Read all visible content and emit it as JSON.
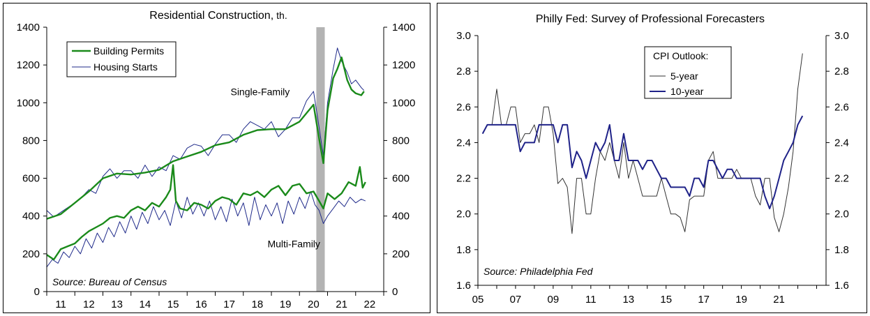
{
  "chart_data": [
    {
      "type": "line",
      "title": "Residential Construction,",
      "title_unit": "th.",
      "source": "Source: Bureau of Census",
      "ylim": [
        0,
        1400
      ],
      "yticks": [
        0,
        200,
        400,
        600,
        800,
        1000,
        1200,
        1400
      ],
      "xlim": [
        2010.5,
        2022.5
      ],
      "xtick_labels": [
        "11",
        "12",
        "13",
        "14",
        "15",
        "16",
        "17",
        "18",
        "19",
        "20",
        "21",
        "22"
      ],
      "shaded_period": [
        2020.1,
        2020.4
      ],
      "shade_color": "#b3b3b3",
      "grid": false,
      "legend_position": "top-left",
      "annotations": [
        {
          "text": "Single-Family",
          "x": 2018.1,
          "y": 1040
        },
        {
          "text": "Multi-Family",
          "x": 2019.3,
          "y": 235
        }
      ],
      "series": [
        {
          "name": "Building Permits",
          "group": "single-family",
          "color": "#1a8a1a",
          "width": 2.4,
          "x": [
            2010.5,
            2011.0,
            2011.5,
            2012.0,
            2012.5,
            2013.0,
            2013.5,
            2014.0,
            2014.5,
            2015.0,
            2015.5,
            2016.0,
            2016.5,
            2017.0,
            2017.5,
            2018.0,
            2018.5,
            2019.0,
            2019.5,
            2020.0,
            2020.2,
            2020.35,
            2020.5,
            2020.7,
            2020.85,
            2021.0,
            2021.2,
            2021.35,
            2021.5,
            2021.7,
            2021.8
          ],
          "y": [
            385,
            410,
            470,
            530,
            600,
            625,
            620,
            630,
            645,
            690,
            715,
            740,
            775,
            790,
            830,
            855,
            860,
            860,
            900,
            990,
            810,
            680,
            960,
            1130,
            1180,
            1240,
            1120,
            1070,
            1050,
            1040,
            1060
          ]
        },
        {
          "name": "Housing Starts",
          "group": "single-family",
          "color": "#1f2a8a",
          "width": 1,
          "x": [
            2010.5,
            2010.75,
            2011.0,
            2011.25,
            2011.5,
            2011.75,
            2012.0,
            2012.25,
            2012.5,
            2012.75,
            2013.0,
            2013.25,
            2013.5,
            2013.75,
            2014.0,
            2014.25,
            2014.5,
            2014.75,
            2015.0,
            2015.25,
            2015.5,
            2015.75,
            2016.0,
            2016.25,
            2016.5,
            2016.75,
            2017.0,
            2017.25,
            2017.5,
            2017.75,
            2018.0,
            2018.25,
            2018.5,
            2018.75,
            2019.0,
            2019.25,
            2019.5,
            2019.75,
            2020.0,
            2020.2,
            2020.35,
            2020.5,
            2020.7,
            2020.85,
            2021.0,
            2021.2,
            2021.35,
            2021.5,
            2021.7,
            2021.8
          ],
          "y": [
            430,
            395,
            420,
            445,
            470,
            500,
            540,
            520,
            610,
            650,
            600,
            640,
            640,
            600,
            670,
            610,
            660,
            640,
            720,
            700,
            760,
            780,
            770,
            720,
            780,
            830,
            830,
            790,
            860,
            900,
            880,
            860,
            900,
            820,
            860,
            920,
            920,
            1010,
            1060,
            870,
            720,
            1000,
            1180,
            1290,
            1220,
            1160,
            1100,
            1120,
            1080,
            1065
          ]
        },
        {
          "name": "Building Permits",
          "group": "multi-family",
          "color": "#1a8a1a",
          "width": 2.4,
          "x": [
            2010.5,
            2010.75,
            2011.0,
            2011.25,
            2011.5,
            2011.75,
            2012.0,
            2012.25,
            2012.5,
            2012.75,
            2013.0,
            2013.25,
            2013.5,
            2013.75,
            2014.0,
            2014.25,
            2014.5,
            2014.75,
            2014.9,
            2015.0,
            2015.1,
            2015.25,
            2015.5,
            2015.75,
            2016.0,
            2016.25,
            2016.5,
            2016.75,
            2017.0,
            2017.25,
            2017.5,
            2017.75,
            2018.0,
            2018.25,
            2018.5,
            2018.75,
            2019.0,
            2019.25,
            2019.5,
            2019.75,
            2020.0,
            2020.2,
            2020.35,
            2020.5,
            2020.75,
            2021.0,
            2021.25,
            2021.5,
            2021.65,
            2021.75,
            2021.85
          ],
          "y": [
            195,
            170,
            225,
            240,
            255,
            290,
            320,
            340,
            360,
            390,
            400,
            390,
            430,
            450,
            430,
            470,
            450,
            500,
            540,
            670,
            480,
            440,
            430,
            470,
            460,
            440,
            480,
            500,
            490,
            460,
            520,
            510,
            530,
            500,
            540,
            560,
            510,
            560,
            570,
            520,
            530,
            480,
            440,
            520,
            490,
            520,
            580,
            560,
            660,
            550,
            580
          ]
        },
        {
          "name": "Housing Starts",
          "group": "multi-family",
          "color": "#1f2a8a",
          "width": 1,
          "x": [
            2010.5,
            2010.7,
            2010.9,
            2011.1,
            2011.3,
            2011.5,
            2011.7,
            2011.9,
            2012.1,
            2012.3,
            2012.5,
            2012.7,
            2012.9,
            2013.1,
            2013.3,
            2013.5,
            2013.7,
            2013.9,
            2014.1,
            2014.3,
            2014.5,
            2014.7,
            2014.9,
            2015.1,
            2015.3,
            2015.5,
            2015.7,
            2015.9,
            2016.1,
            2016.3,
            2016.5,
            2016.7,
            2016.9,
            2017.1,
            2017.3,
            2017.5,
            2017.7,
            2017.9,
            2018.1,
            2018.3,
            2018.5,
            2018.7,
            2018.9,
            2019.1,
            2019.3,
            2019.5,
            2019.7,
            2019.9,
            2020.05,
            2020.2,
            2020.35,
            2020.5,
            2020.7,
            2020.9,
            2021.1,
            2021.3,
            2021.5,
            2021.7,
            2021.85
          ],
          "y": [
            130,
            170,
            150,
            210,
            180,
            240,
            200,
            280,
            230,
            310,
            260,
            340,
            290,
            370,
            310,
            400,
            330,
            420,
            360,
            450,
            380,
            430,
            350,
            480,
            390,
            500,
            410,
            470,
            400,
            480,
            380,
            450,
            370,
            490,
            400,
            470,
            350,
            500,
            380,
            460,
            400,
            470,
            360,
            480,
            410,
            500,
            440,
            530,
            460,
            430,
            360,
            400,
            440,
            480,
            450,
            500,
            470,
            490,
            480
          ]
        }
      ]
    },
    {
      "type": "line",
      "title": "Philly Fed: Survey of Professional Forecasters",
      "source": "Source: Philadelphia Fed",
      "ylim": [
        1.6,
        3.0
      ],
      "yticks": [
        1.6,
        1.8,
        2.0,
        2.2,
        2.4,
        2.6,
        2.8,
        3.0
      ],
      "ytick_labels": [
        "1.6",
        "1.8",
        "2.0",
        "2.2",
        "2.4",
        "2.6",
        "2.8",
        "3.0"
      ],
      "xlim": [
        2005,
        2023.5
      ],
      "xtick_labels": [
        "05",
        "07",
        "09",
        "11",
        "13",
        "15",
        "17",
        "19",
        "21"
      ],
      "grid": false,
      "legend_title": "CPI Outlook:",
      "legend_position": "top-center",
      "series": [
        {
          "name": "5-year",
          "color": "#333333",
          "width": 1,
          "x": [
            2005.25,
            2005.5,
            2005.75,
            2006.0,
            2006.25,
            2006.5,
            2006.75,
            2007.0,
            2007.25,
            2007.5,
            2007.75,
            2008.0,
            2008.25,
            2008.5,
            2008.75,
            2009.0,
            2009.25,
            2009.5,
            2009.75,
            2010.0,
            2010.25,
            2010.5,
            2010.75,
            2011.0,
            2011.25,
            2011.5,
            2011.75,
            2012.0,
            2012.25,
            2012.5,
            2012.75,
            2013.0,
            2013.25,
            2013.5,
            2013.75,
            2014.0,
            2014.25,
            2014.5,
            2014.75,
            2015.0,
            2015.25,
            2015.5,
            2015.75,
            2016.0,
            2016.25,
            2016.5,
            2016.75,
            2017.0,
            2017.25,
            2017.5,
            2017.75,
            2018.0,
            2018.25,
            2018.5,
            2018.75,
            2019.0,
            2019.25,
            2019.5,
            2019.75,
            2020.0,
            2020.25,
            2020.5,
            2020.75,
            2021.0,
            2021.25,
            2021.5,
            2021.75,
            2022.0,
            2022.25
          ],
          "y": [
            2.45,
            2.5,
            2.5,
            2.7,
            2.5,
            2.5,
            2.6,
            2.6,
            2.4,
            2.45,
            2.45,
            2.5,
            2.4,
            2.6,
            2.6,
            2.45,
            2.17,
            2.2,
            2.15,
            1.89,
            2.2,
            2.2,
            2.0,
            2.0,
            2.2,
            2.35,
            2.3,
            2.4,
            2.3,
            2.2,
            2.4,
            2.2,
            2.3,
            2.2,
            2.1,
            2.1,
            2.1,
            2.1,
            2.2,
            2.1,
            2.0,
            2.0,
            1.98,
            1.9,
            2.08,
            2.1,
            2.1,
            2.1,
            2.3,
            2.35,
            2.2,
            2.2,
            2.2,
            2.2,
            2.25,
            2.2,
            2.2,
            2.2,
            2.1,
            2.05,
            2.2,
            2.2,
            1.98,
            1.9,
            2.0,
            2.15,
            2.35,
            2.7,
            2.9
          ]
        },
        {
          "name": "10-year",
          "color": "#1f2288",
          "width": 2,
          "x": [
            2005.25,
            2005.5,
            2005.75,
            2006.0,
            2006.25,
            2006.5,
            2006.75,
            2007.0,
            2007.25,
            2007.5,
            2007.75,
            2008.0,
            2008.25,
            2008.5,
            2008.75,
            2009.0,
            2009.25,
            2009.5,
            2009.75,
            2010.0,
            2010.25,
            2010.5,
            2010.75,
            2011.0,
            2011.25,
            2011.5,
            2011.75,
            2012.0,
            2012.25,
            2012.5,
            2012.75,
            2013.0,
            2013.25,
            2013.5,
            2013.75,
            2014.0,
            2014.25,
            2014.5,
            2014.75,
            2015.0,
            2015.25,
            2015.5,
            2015.75,
            2016.0,
            2016.25,
            2016.5,
            2016.75,
            2017.0,
            2017.25,
            2017.5,
            2017.75,
            2018.0,
            2018.25,
            2018.5,
            2018.75,
            2019.0,
            2019.25,
            2019.5,
            2019.75,
            2020.0,
            2020.25,
            2020.5,
            2020.75,
            2021.0,
            2021.25,
            2021.5,
            2021.75,
            2022.0,
            2022.25
          ],
          "y": [
            2.45,
            2.5,
            2.5,
            2.5,
            2.5,
            2.5,
            2.5,
            2.5,
            2.35,
            2.4,
            2.4,
            2.4,
            2.5,
            2.5,
            2.5,
            2.5,
            2.4,
            2.5,
            2.5,
            2.26,
            2.35,
            2.3,
            2.2,
            2.3,
            2.4,
            2.35,
            2.4,
            2.5,
            2.3,
            2.3,
            2.45,
            2.3,
            2.3,
            2.3,
            2.25,
            2.3,
            2.3,
            2.25,
            2.2,
            2.2,
            2.15,
            2.15,
            2.15,
            2.15,
            2.1,
            2.2,
            2.2,
            2.15,
            2.3,
            2.3,
            2.25,
            2.2,
            2.25,
            2.25,
            2.2,
            2.2,
            2.2,
            2.2,
            2.2,
            2.2,
            2.1,
            2.03,
            2.1,
            2.2,
            2.3,
            2.35,
            2.4,
            2.5,
            2.55
          ]
        }
      ]
    }
  ]
}
